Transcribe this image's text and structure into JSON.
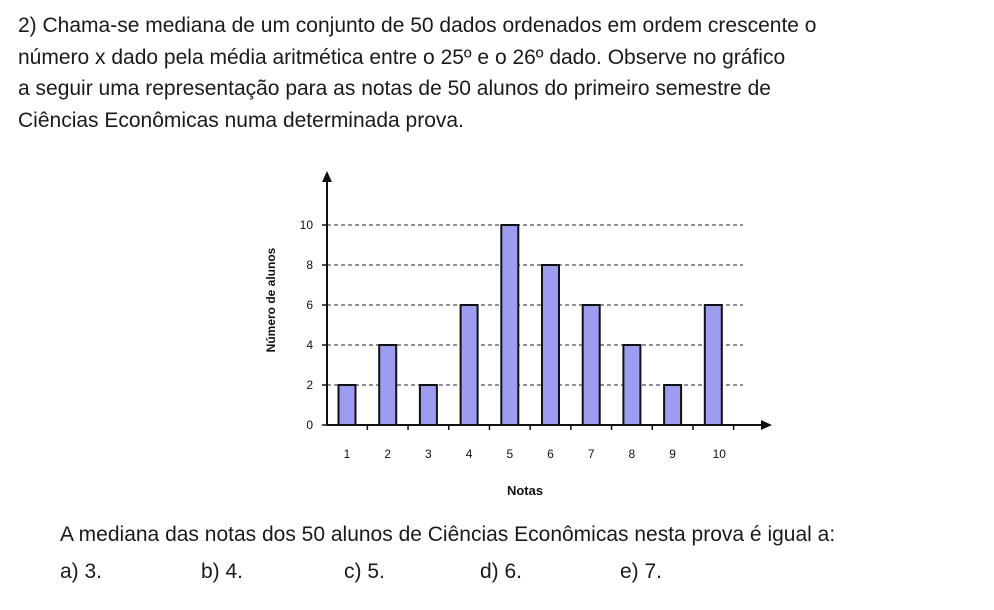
{
  "question": {
    "lines": [
      "2) Chama-se mediana de um conjunto de 50 dados ordenados em ordem crescente o",
      "número x dado pela média aritmética entre o 25º e o 26º dado. Observe no gráfico",
      "a seguir uma representação para as notas de 50 alunos do primeiro semestre de",
      "Ciências Econômicas numa determinada prova."
    ],
    "stem": "A mediana das notas dos 50 alunos de Ciências Econômicas nesta prova é igual a:",
    "options": [
      "a) 3.",
      "b) 4.",
      "c) 5.",
      "d) 6.",
      "e) 7."
    ]
  },
  "chart_data": {
    "type": "bar",
    "categories": [
      "1",
      "2",
      "3",
      "4",
      "5",
      "6",
      "7",
      "8",
      "9",
      "10"
    ],
    "values": [
      2,
      4,
      2,
      6,
      10,
      8,
      6,
      4,
      2,
      6
    ],
    "xlabel": "Notas",
    "ylabel": "Número de alunos",
    "yticks": [
      "0",
      "2",
      "4",
      "6",
      "8",
      "10"
    ],
    "ylim": [
      0,
      10
    ],
    "grid": "horizontal dashed",
    "bar_color": "#9c9cf0"
  }
}
